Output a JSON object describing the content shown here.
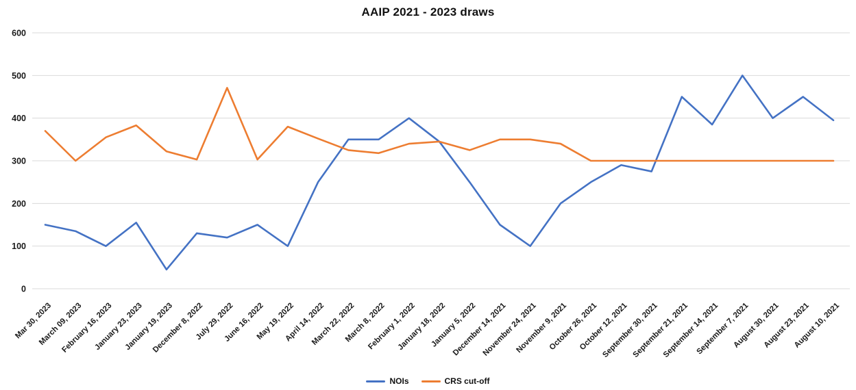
{
  "chart_data": {
    "type": "line",
    "title": "AAIP 2021 - 2023 draws",
    "categories": [
      "Mar 30, 2023",
      "March 09, 2023",
      "February 16, 2023",
      "January 23, 2023",
      "January 19, 2023",
      "December 8, 2022",
      "July 29, 2022",
      "June 16, 2022",
      "May 19, 2022",
      "April 14, 2022",
      "March 22, 2022",
      "March 8, 2022",
      "February 1, 2022",
      "January 18, 2022",
      "January 5, 2022",
      "December 14, 2021",
      "November 24, 2021",
      "November 9, 2021",
      "October 26, 2021",
      "October 12, 2021",
      "September 30, 2021",
      "September 21, 2021",
      "September 14, 2021",
      "September 7, 2021",
      "August 30, 2021",
      "August 23, 2021",
      "August 10, 2021"
    ],
    "series": [
      {
        "name": "NOIs",
        "color": "#4472C4",
        "values": [
          150,
          135,
          100,
          155,
          45,
          130,
          120,
          150,
          100,
          250,
          350,
          350,
          400,
          345,
          250,
          150,
          100,
          200,
          250,
          290,
          275,
          450,
          385,
          500,
          400,
          450,
          395
        ]
      },
      {
        "name": "CRS cut-off",
        "color": "#ED7D31",
        "values": [
          370,
          300,
          355,
          383,
          322,
          303,
          471,
          303,
          380,
          352,
          325,
          318,
          340,
          345,
          325,
          350,
          350,
          340,
          300,
          300,
          300,
          300,
          300,
          300,
          300,
          300,
          300
        ]
      }
    ],
    "xlabel": "",
    "ylabel": "",
    "ylim": [
      0,
      600
    ],
    "yticks": [
      0,
      100,
      200,
      300,
      400,
      500,
      600
    ],
    "grid": true,
    "grid_color": "#D9D9D9",
    "legend_position": "bottom"
  }
}
